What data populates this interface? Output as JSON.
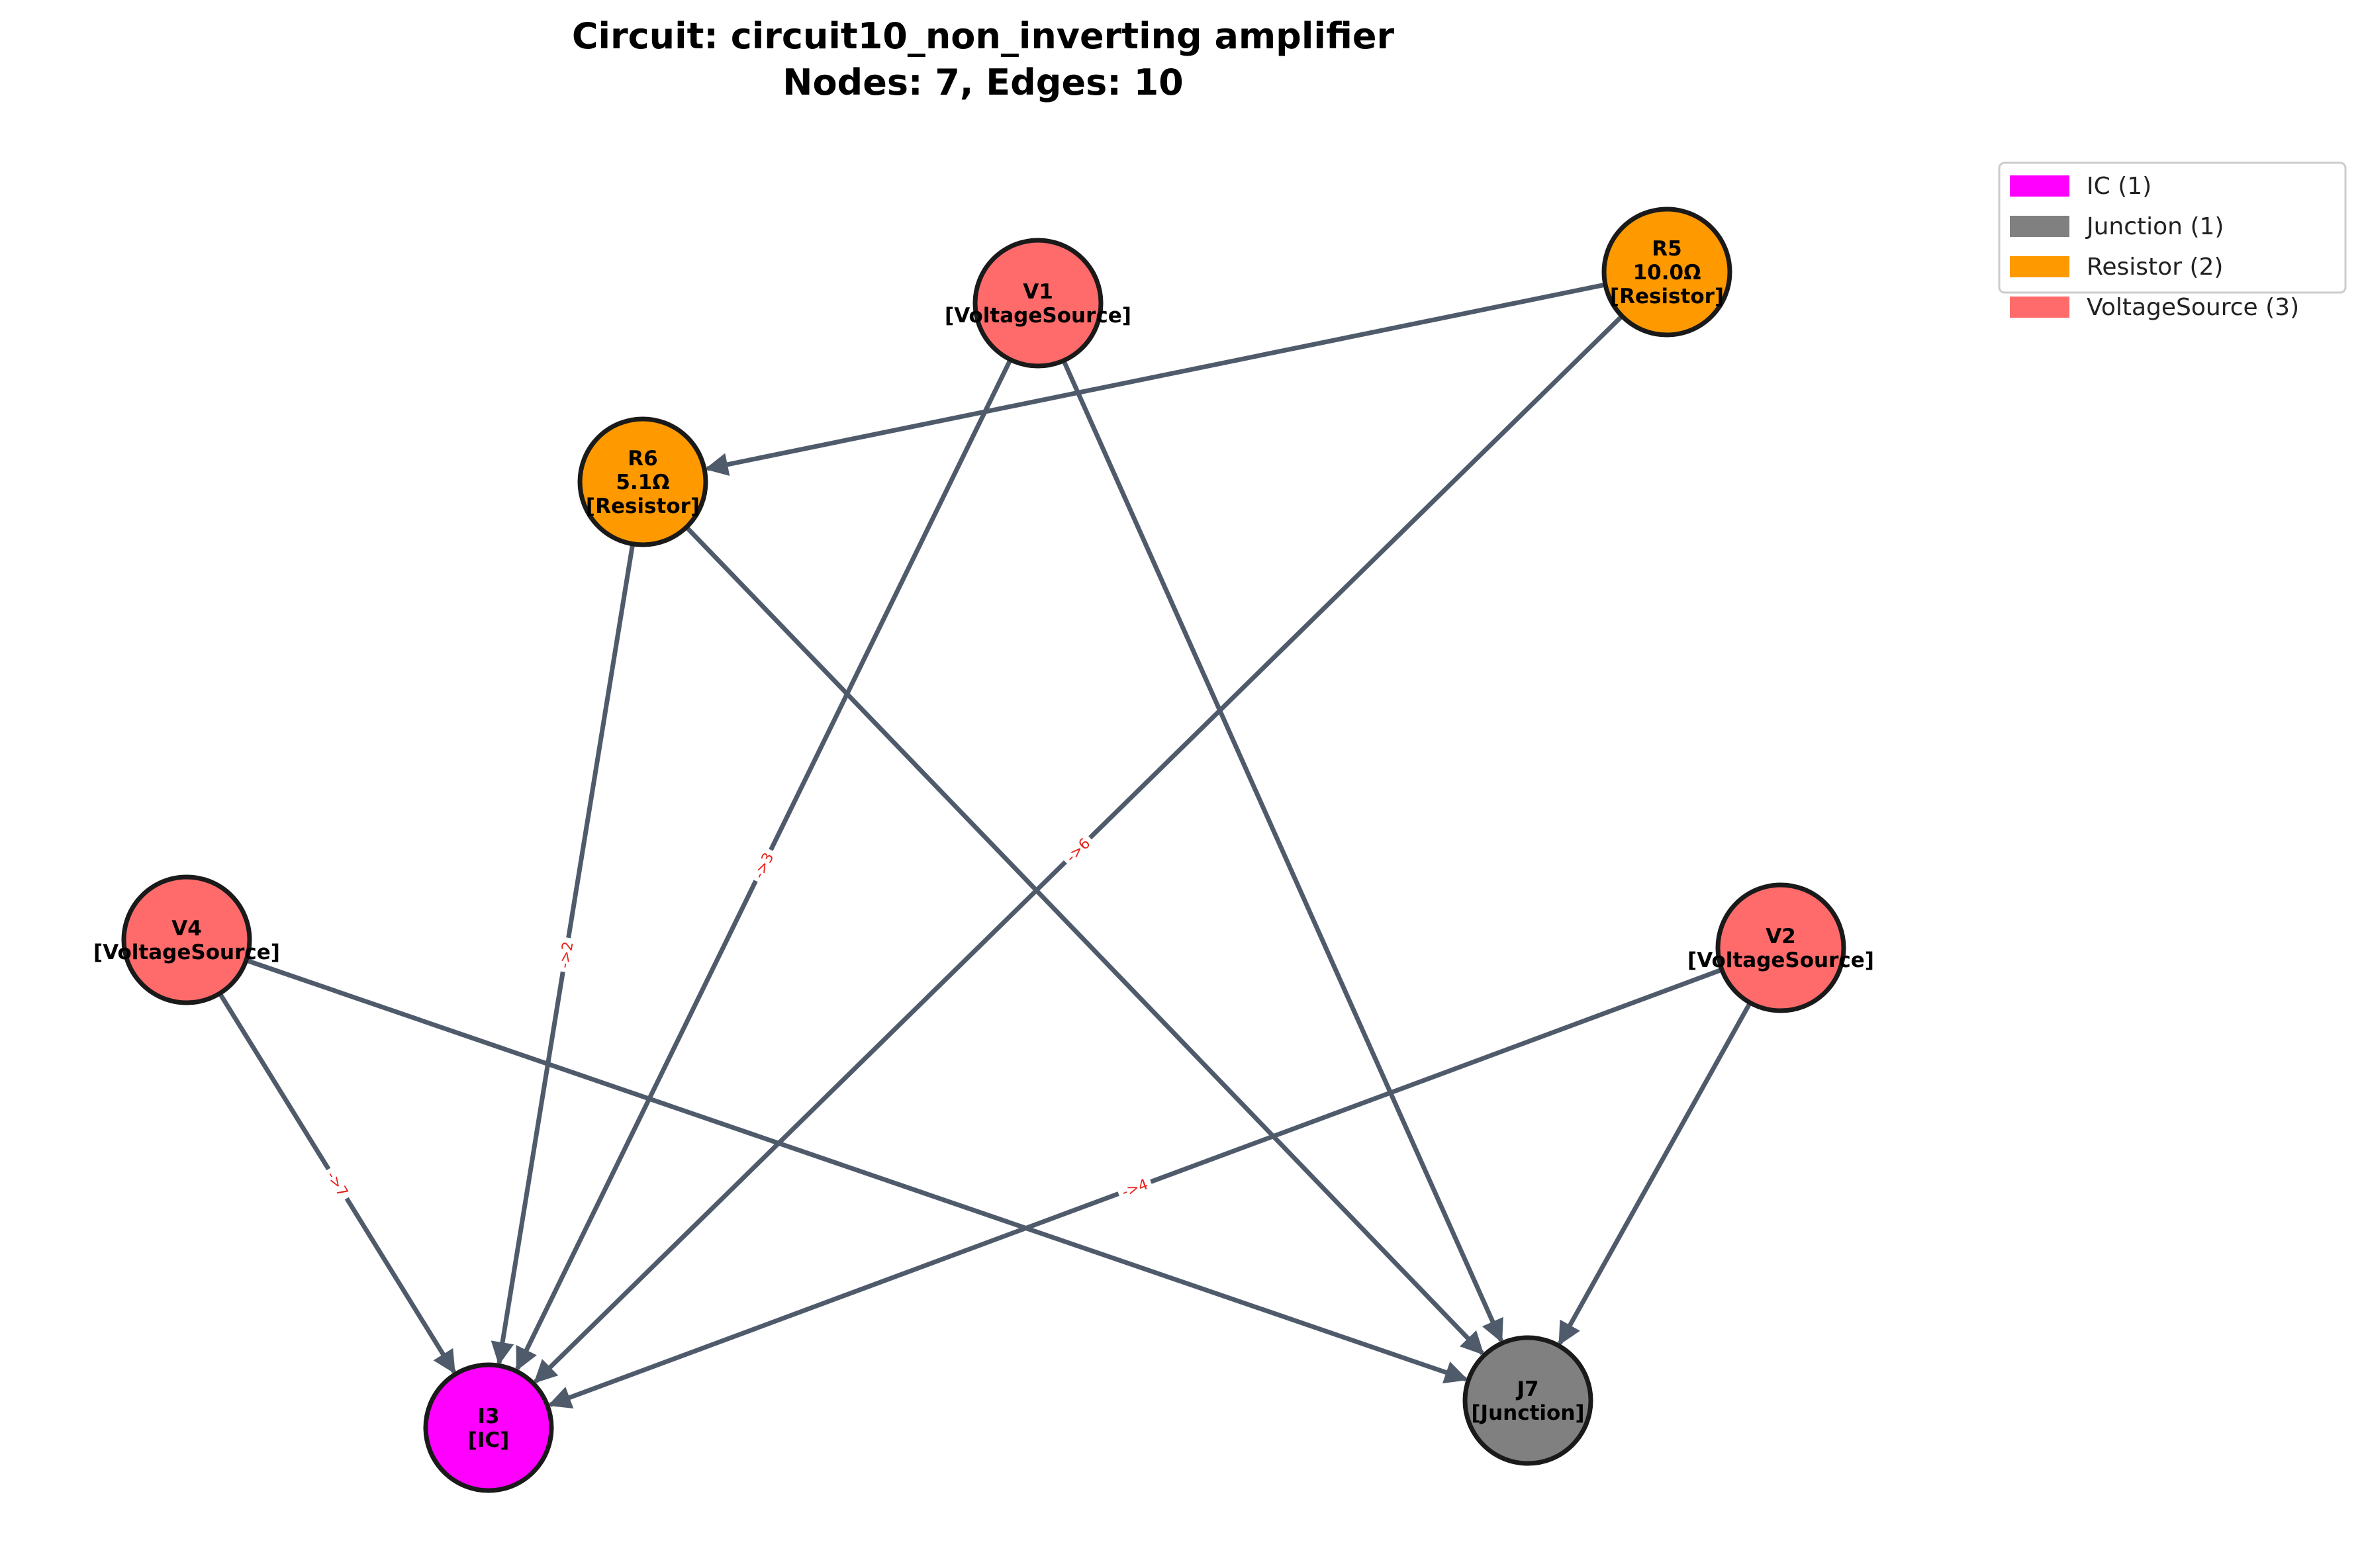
{
  "title": {
    "line1": "Circuit: circuit10_non_inverting amplifier",
    "line2": "Nodes: 7, Edges: 10"
  },
  "colors": {
    "IC": "#ff00ff",
    "Junction": "#808080",
    "Resistor": "#ff9900",
    "VoltageSource": "#ff6b6b",
    "edge": "#4f5b6b",
    "edge_label": "#e8231c",
    "node_border": "#1a1a1a"
  },
  "legend": [
    {
      "label": "IC (1)",
      "color": "#ff00ff"
    },
    {
      "label": "Junction (1)",
      "color": "#808080"
    },
    {
      "label": "Resistor (2)",
      "color": "#ff9900"
    },
    {
      "label": "VoltageSource (3)",
      "color": "#ff6b6b"
    }
  ],
  "nodes": [
    {
      "id": "V1",
      "type": "VoltageSource",
      "lines": [
        "V1",
        "[VoltageSource]"
      ]
    },
    {
      "id": "R5",
      "type": "Resistor",
      "lines": [
        "R5",
        "10.0Ω",
        "[Resistor]"
      ]
    },
    {
      "id": "R6",
      "type": "Resistor",
      "lines": [
        "R6",
        "5.1Ω",
        "[Resistor]"
      ]
    },
    {
      "id": "V4",
      "type": "VoltageSource",
      "lines": [
        "V4",
        "[VoltageSource]"
      ]
    },
    {
      "id": "V2",
      "type": "VoltageSource",
      "lines": [
        "V2",
        "[VoltageSource]"
      ]
    },
    {
      "id": "I3",
      "type": "IC",
      "lines": [
        "I3",
        "[IC]"
      ]
    },
    {
      "id": "J7",
      "type": "Junction",
      "lines": [
        "J7",
        "[Junction]"
      ]
    }
  ],
  "edges": [
    {
      "from": "R5",
      "to": "R6",
      "label": ""
    },
    {
      "from": "V1",
      "to": "I3",
      "label": "->3"
    },
    {
      "from": "V1",
      "to": "J7",
      "label": ""
    },
    {
      "from": "R5",
      "to": "I3",
      "label": "->6"
    },
    {
      "from": "R6",
      "to": "I3",
      "label": "->2"
    },
    {
      "from": "R6",
      "to": "J7",
      "label": ""
    },
    {
      "from": "V4",
      "to": "I3",
      "label": "->7"
    },
    {
      "from": "V4",
      "to": "J7",
      "label": ""
    },
    {
      "from": "V2",
      "to": "I3",
      "label": "->4"
    },
    {
      "from": "V2",
      "to": "J7",
      "label": ""
    }
  ]
}
